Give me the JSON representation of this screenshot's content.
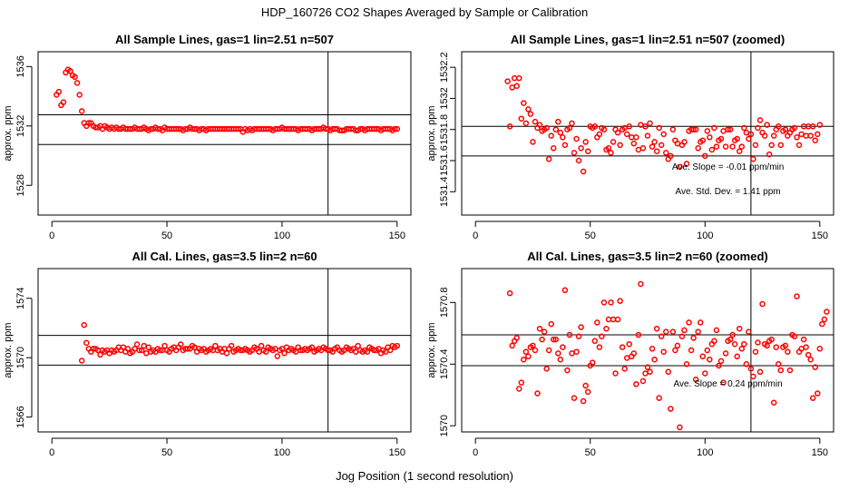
{
  "figure": {
    "title": "HDP_160726  CO2 Shapes Averaged by Sample or Calibration",
    "xlabel": "Jog Position (1 second resolution)"
  },
  "colors": {
    "points": "#ff0000",
    "lines": "#000000"
  },
  "chart_data": [
    {
      "type": "scatter",
      "title": "All Sample Lines, gas=1 lin=2.51 n=507",
      "ylabel": "approx. ppm",
      "xlim": [
        0,
        150
      ],
      "ylim": [
        1526,
        1537
      ],
      "xticks": [
        0,
        50,
        100,
        150
      ],
      "yticks": [
        1528,
        1532,
        1536
      ],
      "hlines": [
        1532.75,
        1530.75
      ],
      "vline": 120,
      "annotations": [],
      "x_start": 2,
      "y": [
        1534.1,
        1534.3,
        1533.4,
        1533.6,
        1535.6,
        1535.8,
        1535.7,
        1535.4,
        1535.3,
        1534.9,
        1534.1,
        1533.0,
        1532.2,
        1532.0,
        1532.2,
        1532.2,
        1532.0,
        1531.9,
        1531.9,
        1532.0,
        1531.8,
        1532.0,
        1531.9,
        1531.8,
        1531.9,
        1531.8,
        1531.9,
        1531.8,
        1531.8,
        1531.9,
        1531.8,
        1531.8,
        1531.8,
        1531.8,
        1531.9,
        1531.8,
        1531.8,
        1531.8,
        1531.9,
        1531.8,
        1531.7,
        1531.8,
        1531.8,
        1531.9,
        1531.8,
        1531.8,
        1531.7,
        1531.9,
        1531.8,
        1531.8,
        1531.8,
        1531.8,
        1531.8,
        1531.8,
        1531.8,
        1531.7,
        1531.8,
        1531.8,
        1531.9,
        1531.8,
        1531.8,
        1531.8,
        1531.7,
        1531.8,
        1531.8,
        1531.7,
        1531.8,
        1531.8,
        1531.8,
        1531.8,
        1531.8,
        1531.8,
        1531.8,
        1531.8,
        1531.8,
        1531.8,
        1531.8,
        1531.8,
        1531.8,
        1531.8,
        1531.8,
        1531.6,
        1531.8,
        1531.7,
        1531.8,
        1531.7,
        1531.8,
        1531.8,
        1531.8,
        1531.8,
        1531.8,
        1531.8,
        1531.8,
        1531.8,
        1531.7,
        1531.8,
        1531.8,
        1531.8,
        1531.9,
        1531.8,
        1531.8,
        1531.8,
        1531.8,
        1531.8,
        1531.8,
        1531.7,
        1531.8,
        1531.8,
        1531.8,
        1531.8,
        1531.8,
        1531.7,
        1531.8,
        1531.8,
        1531.8,
        1531.8,
        1531.9,
        1531.8,
        1531.8,
        1531.7,
        1531.8,
        1531.8,
        1531.8,
        1531.7,
        1531.7,
        1531.7,
        1531.8,
        1531.8,
        1531.8,
        1531.8,
        1531.7,
        1531.7,
        1531.8,
        1531.8,
        1531.7,
        1531.8,
        1531.8,
        1531.8,
        1531.8,
        1531.8,
        1531.8,
        1531.7,
        1531.8,
        1531.8,
        1531.8,
        1531.8,
        1531.7,
        1531.8,
        1531.8
      ]
    },
    {
      "type": "scatter",
      "title": "All Sample Lines, gas=1 lin=2.51 n=507 (zoomed)",
      "ylabel": "approx. ppm",
      "xlim": [
        0,
        150
      ],
      "ylim": [
        1531.25,
        1532.3
      ],
      "xticks": [
        0,
        50,
        100,
        150
      ],
      "yticks": [
        1531.4,
        1531.6,
        1531.8,
        1532.0,
        1532.2
      ],
      "hlines": [
        1531.82,
        1531.63
      ],
      "vline": 120,
      "annotations": [
        "Ave. Slope =  -0.01  ppm/min",
        "Ave. Std. Dev. =  1.41  ppm"
      ],
      "x_start": 14,
      "y": [
        1532.11,
        1531.82,
        1532.07,
        1532.13,
        1532.08,
        1532.13,
        1531.87,
        1531.97,
        1531.84,
        1531.93,
        1531.9,
        1531.72,
        1531.85,
        1531.81,
        1531.83,
        1531.79,
        1531.8,
        1531.81,
        1531.61,
        1531.76,
        1531.68,
        1531.8,
        1531.85,
        1531.78,
        1531.75,
        1531.7,
        1531.8,
        1531.81,
        1531.84,
        1531.65,
        1531.74,
        1531.6,
        1531.68,
        1531.53,
        1531.72,
        1531.66,
        1531.82,
        1531.81,
        1531.82,
        1531.75,
        1531.77,
        1531.81,
        1531.8,
        1531.67,
        1531.68,
        1531.65,
        1531.72,
        1531.8,
        1531.78,
        1531.7,
        1531.8,
        1531.81,
        1531.77,
        1531.82,
        1531.75,
        1531.71,
        1531.75,
        1531.67,
        1531.83,
        1531.68,
        1531.82,
        1531.76,
        1531.84,
        1531.69,
        1531.72,
        1531.66,
        1531.81,
        1531.7,
        1531.77,
        1531.65,
        1531.61,
        1531.63,
        1531.8,
        1531.73,
        1531.71,
        1531.56,
        1531.7,
        1531.72,
        1531.58,
        1531.79,
        1531.8,
        1531.8,
        1531.8,
        1531.68,
        1531.72,
        1531.73,
        1531.63,
        1531.79,
        1531.75,
        1531.67,
        1531.81,
        1531.69,
        1531.73,
        1531.74,
        1531.79,
        1531.69,
        1531.8,
        1531.8,
        1531.69,
        1531.73,
        1531.74,
        1531.66,
        1531.69,
        1531.81,
        1531.78,
        1531.74,
        1531.77,
        1531.61,
        1531.7,
        1531.81,
        1531.86,
        1531.78,
        1531.76,
        1531.83,
        1531.64,
        1531.7,
        1531.76,
        1531.8,
        1531.82,
        1531.7,
        1531.79,
        1531.8,
        1531.76,
        1531.78,
        1531.8,
        1531.81,
        1531.75,
        1531.7,
        1531.77,
        1531.82,
        1531.76,
        1531.82,
        1531.76,
        1531.82,
        1531.73,
        1531.77,
        1531.83
      ]
    },
    {
      "type": "scatter",
      "title": "All Cal. Lines, gas=3.5 lin=2 n=60",
      "ylabel": "approx. ppm",
      "xlim": [
        0,
        150
      ],
      "ylim": [
        1565,
        1576
      ],
      "xticks": [
        0,
        50,
        100,
        150
      ],
      "yticks": [
        1566,
        1570,
        1574
      ],
      "hlines": [
        1571.5,
        1569.5
      ],
      "vline": 120,
      "annotations": [],
      "x_start": 13,
      "y": [
        1569.8,
        1572.2,
        1571.0,
        1570.6,
        1570.4,
        1570.6,
        1570.6,
        1570.5,
        1570.2,
        1570.5,
        1570.4,
        1570.5,
        1570.3,
        1570.5,
        1570.4,
        1570.5,
        1570.7,
        1570.5,
        1570.7,
        1570.4,
        1570.6,
        1570.3,
        1570.4,
        1570.6,
        1570.9,
        1570.5,
        1570.5,
        1570.8,
        1570.3,
        1570.7,
        1570.4,
        1570.5,
        1570.4,
        1570.6,
        1570.5,
        1570.5,
        1570.8,
        1570.5,
        1570.4,
        1570.6,
        1570.7,
        1570.5,
        1570.7,
        1570.9,
        1570.5,
        1570.6,
        1570.6,
        1570.6,
        1570.8,
        1570.7,
        1570.4,
        1570.6,
        1570.5,
        1570.6,
        1570.4,
        1570.5,
        1570.6,
        1570.5,
        1570.8,
        1570.5,
        1570.6,
        1570.4,
        1570.6,
        1570.3,
        1570.6,
        1570.8,
        1570.4,
        1570.5,
        1570.6,
        1570.5,
        1570.5,
        1570.6,
        1570.5,
        1570.4,
        1570.5,
        1570.7,
        1570.6,
        1570.4,
        1570.8,
        1570.5,
        1570.4,
        1570.7,
        1570.6,
        1570.5,
        1570.6,
        1570.1,
        1570.5,
        1570.6,
        1570.3,
        1570.7,
        1570.5,
        1570.6,
        1570.5,
        1570.4,
        1570.7,
        1570.5,
        1570.5,
        1570.6,
        1570.5,
        1570.6,
        1570.7,
        1570.4,
        1570.5,
        1570.6,
        1570.5,
        1570.7,
        1570.6,
        1570.5,
        1570.5,
        1570.4,
        1570.6,
        1570.7,
        1570.5,
        1570.4,
        1570.5,
        1570.7,
        1570.6,
        1570.5,
        1570.6,
        1570.4,
        1570.8,
        1570.5,
        1570.4,
        1570.5,
        1570.4,
        1570.7,
        1570.6,
        1570.5,
        1570.5,
        1570.6,
        1570.3,
        1570.5,
        1570.4,
        1570.7,
        1570.5,
        1570.8,
        1570.7,
        1570.8
      ]
    },
    {
      "type": "scatter",
      "title": "All Cal. Lines, gas=3.5 lin=2 n=60 (zoomed)",
      "ylabel": "approx. ppm",
      "xlim": [
        0,
        150
      ],
      "ylim": [
        1569.96,
        1571.02
      ],
      "xticks": [
        0,
        50,
        100,
        150
      ],
      "yticks": [
        1570.0,
        1570.4,
        1570.8
      ],
      "hlines": [
        1570.59,
        1570.39
      ],
      "vline": 120,
      "annotations": [
        "Ave. Slope =  0.24  ppm/min"
      ],
      "x_start": 15,
      "y": [
        1570.86,
        1570.52,
        1570.55,
        1570.57,
        1570.24,
        1570.28,
        1570.43,
        1570.48,
        1570.45,
        1570.51,
        1570.52,
        1570.49,
        1570.21,
        1570.63,
        1570.56,
        1570.61,
        1570.37,
        1570.49,
        1570.66,
        1570.56,
        1570.56,
        1570.47,
        1570.43,
        1570.51,
        1570.88,
        1570.36,
        1570.59,
        1570.47,
        1570.18,
        1570.48,
        1570.58,
        1570.64,
        1570.16,
        1570.26,
        1570.22,
        1570.39,
        1570.41,
        1570.55,
        1570.67,
        1570.51,
        1570.58,
        1570.8,
        1570.63,
        1570.69,
        1570.8,
        1570.69,
        1570.34,
        1570.69,
        1570.81,
        1570.51,
        1570.37,
        1570.44,
        1570.53,
        1570.45,
        1570.47,
        1570.27,
        1570.59,
        1570.92,
        1570.29,
        1570.34,
        1570.38,
        1570.35,
        1570.5,
        1570.43,
        1570.63,
        1570.18,
        1570.58,
        1570.48,
        1570.61,
        1570.35,
        1570.11,
        1570.61,
        1570.49,
        1570.52,
        1569.99,
        1570.58,
        1570.62,
        1570.4,
        1570.67,
        1570.49,
        1570.57,
        1570.3,
        1570.61,
        1570.67,
        1570.45,
        1570.34,
        1570.49,
        1570.43,
        1570.53,
        1570.55,
        1570.62,
        1570.39,
        1570.42,
        1570.28,
        1570.47,
        1570.55,
        1570.56,
        1570.59,
        1570.53,
        1570.45,
        1570.63,
        1570.5,
        1570.53,
        1570.4,
        1570.61,
        1570.37,
        1570.32,
        1570.48,
        1570.54,
        1570.35,
        1570.79,
        1570.53,
        1570.52,
        1570.55,
        1570.56,
        1570.15,
        1570.51,
        1570.4,
        1570.36,
        1570.51,
        1570.52,
        1570.48,
        1570.36,
        1570.59,
        1570.58,
        1570.84,
        1570.48,
        1570.5,
        1570.56,
        1570.51,
        1570.46,
        1570.43,
        1570.18,
        1570.38,
        1570.21,
        1570.5,
        1570.66,
        1570.69,
        1570.74
      ]
    }
  ]
}
